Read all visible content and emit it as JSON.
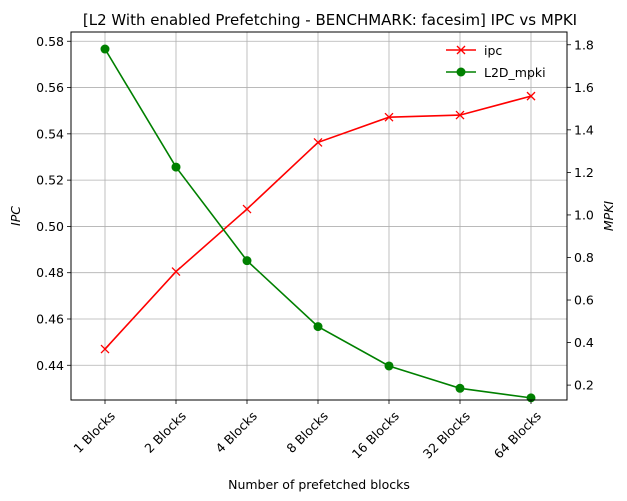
{
  "chart_data": {
    "type": "line",
    "title": "[L2 With enabled Prefetching - BENCHMARK: facesim]  IPC vs MPKI",
    "xlabel": "Number of prefetched blocks",
    "ylabel_left": "IPC",
    "ylabel_right": "MPKI",
    "categories": [
      "1 Blocks",
      "2 Blocks",
      "4 Blocks",
      "8 Blocks",
      "16 Blocks",
      "32 Blocks",
      "64 Blocks"
    ],
    "ylim_left": [
      0.425,
      0.584
    ],
    "ylim_right": [
      0.13,
      1.86
    ],
    "yticks_left": [
      0.44,
      0.46,
      0.48,
      0.5,
      0.52,
      0.54,
      0.56,
      0.58
    ],
    "yticks_left_labels": [
      "0.44",
      "0.46",
      "0.48",
      "0.50",
      "0.52",
      "0.54",
      "0.56",
      "0.58"
    ],
    "yticks_right": [
      0.2,
      0.4,
      0.6,
      0.8,
      1.0,
      1.2,
      1.4,
      1.6,
      1.8
    ],
    "yticks_right_labels": [
      "0.2",
      "0.4",
      "0.6",
      "0.8",
      "1.0",
      "1.2",
      "1.4",
      "1.6",
      "1.8"
    ],
    "grid": true,
    "legend_position": "top-right",
    "series": [
      {
        "name": "ipc",
        "axis": "left",
        "color": "#ff0000",
        "marker": "x",
        "values": [
          0.447,
          0.4805,
          0.5075,
          0.5363,
          0.5472,
          0.5481,
          0.5563
        ]
      },
      {
        "name": "L2D_mpki",
        "axis": "right",
        "color": "#008000",
        "marker": "circle",
        "values": [
          1.78,
          1.225,
          0.785,
          0.475,
          0.29,
          0.185,
          0.14
        ]
      }
    ]
  }
}
